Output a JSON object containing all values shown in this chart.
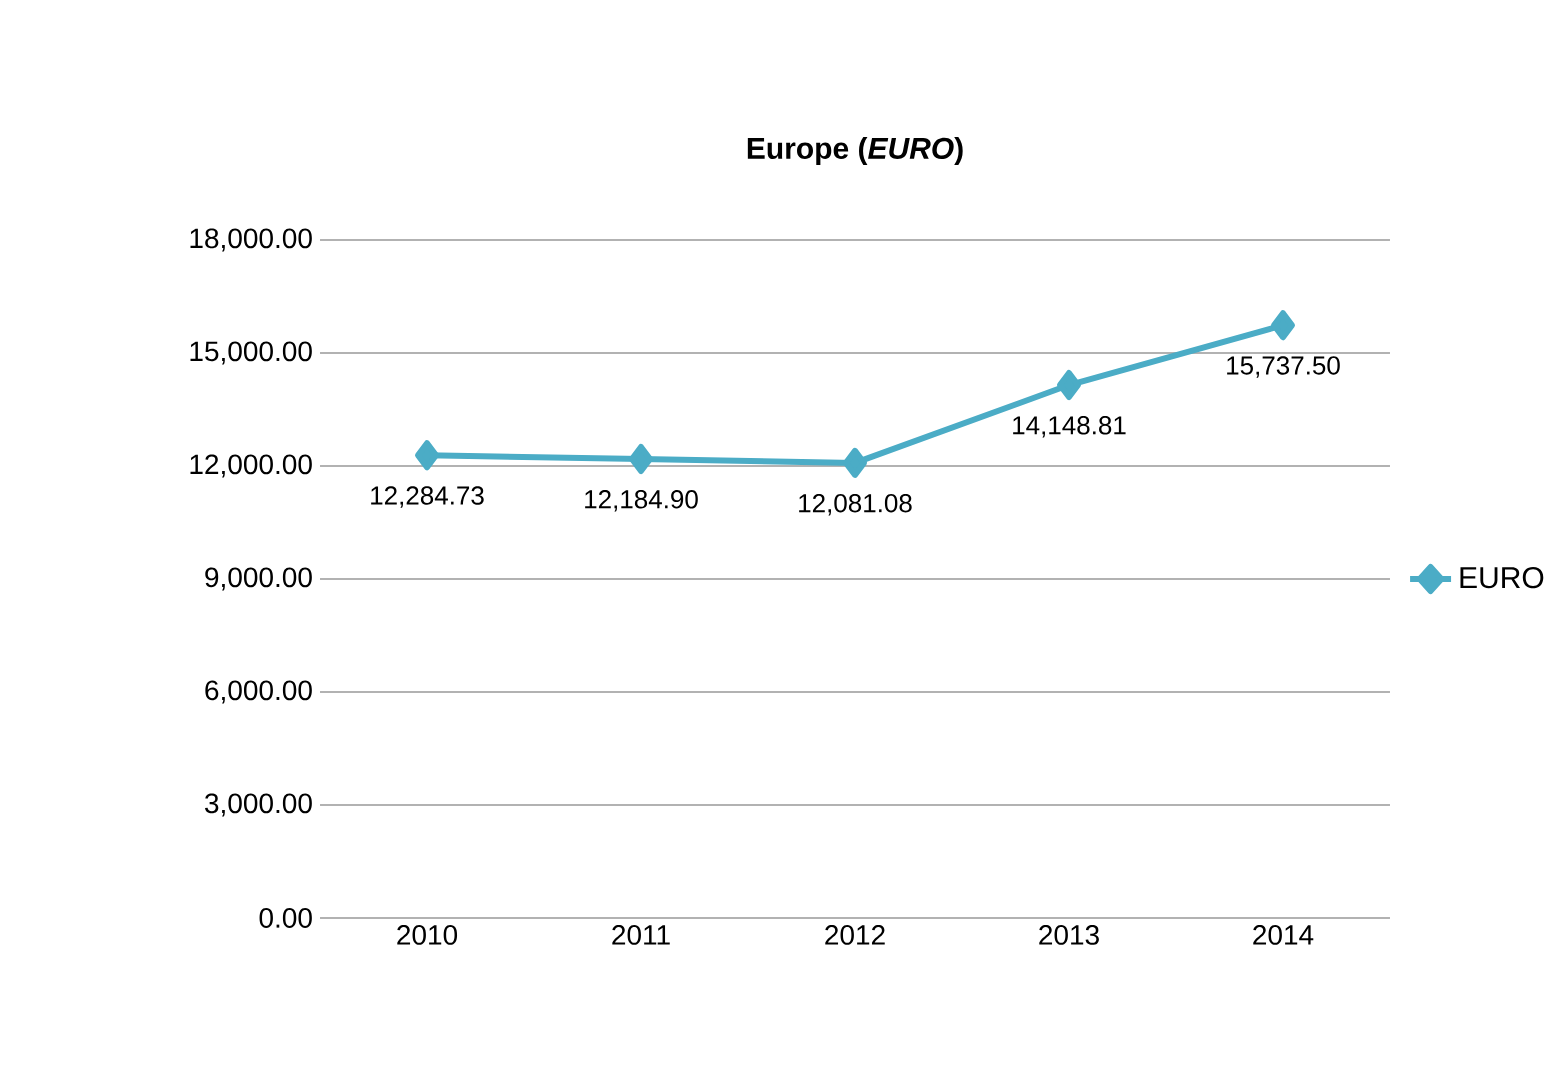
{
  "chart_data": {
    "type": "line",
    "title": "Europe (*EURO*)",
    "categories": [
      "2010",
      "2011",
      "2012",
      "2013",
      "2014"
    ],
    "series": [
      {
        "name": "EURO",
        "color": "#4bacc6",
        "values": [
          12284.73,
          12184.9,
          12081.08,
          14148.81,
          15737.5
        ],
        "value_labels": [
          "12,284.73",
          "12,184.90",
          "12,081.08",
          "14,148.81",
          "15,737.50"
        ]
      }
    ],
    "ylim": [
      0,
      18000
    ],
    "yticks": [
      {
        "value": 0,
        "label": "0.00"
      },
      {
        "value": 3000,
        "label": "3,000.00"
      },
      {
        "value": 6000,
        "label": "6,000.00"
      },
      {
        "value": 9000,
        "label": "9,000.00"
      },
      {
        "value": 12000,
        "label": "12,000.00"
      },
      {
        "value": 15000,
        "label": "15,000.00"
      },
      {
        "value": 18000,
        "label": "18,000.00"
      }
    ],
    "grid": "y",
    "legend": "right",
    "marker": "diamond",
    "line_style": "solid"
  }
}
